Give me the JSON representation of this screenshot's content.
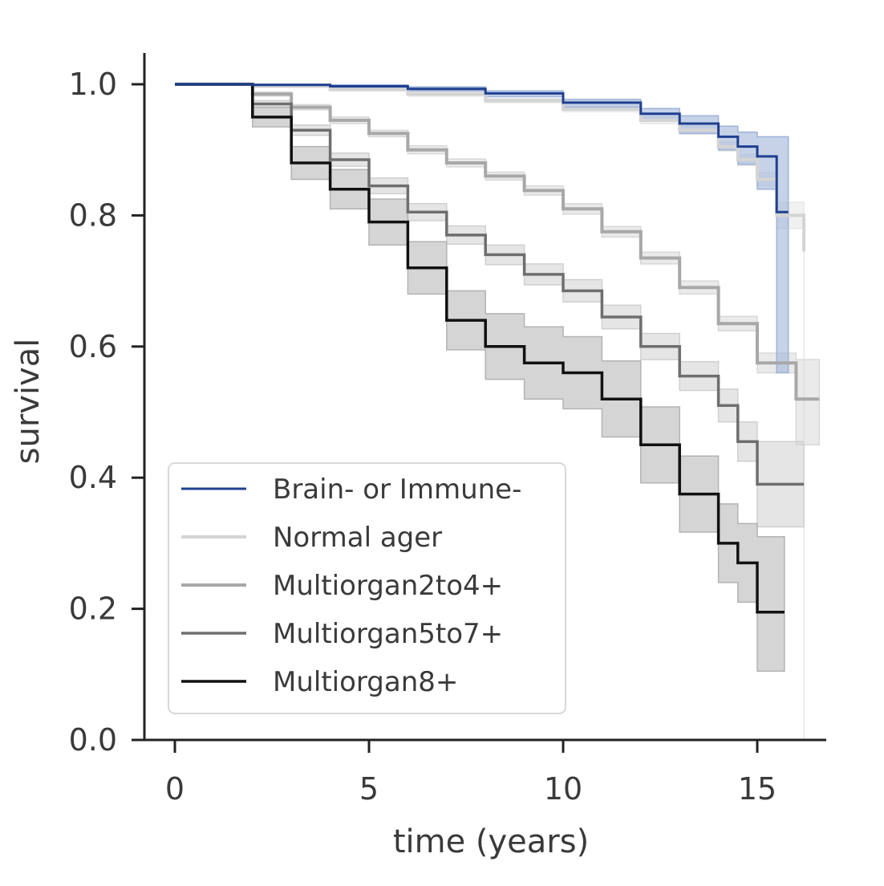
{
  "chart_data": {
    "type": "line",
    "subtype": "kaplan-meier step survival curves with confidence bands",
    "title": "",
    "xlabel": "time (years)",
    "ylabel": "survival",
    "xlim": [
      -1.5,
      16.9
    ],
    "ylim": [
      0,
      1.05
    ],
    "xticks": [
      0,
      5,
      10,
      15
    ],
    "yticks": [
      0.0,
      0.2,
      0.4,
      0.6,
      0.8,
      1.0
    ],
    "xtick_labels": [
      "0",
      "5",
      "10",
      "15"
    ],
    "ytick_labels": [
      "0.0",
      "0.2",
      "0.4",
      "0.6",
      "0.8",
      "1.0"
    ],
    "grid": false,
    "spines": "left and bottom only",
    "legend_position": "lower-left",
    "series": [
      {
        "name": "Brain- or Immune-",
        "color": "#1f3f8f",
        "band_color": "#9fb4d8",
        "line_width": 3,
        "points": [
          [
            0,
            1.0
          ],
          [
            1,
            1.0
          ],
          [
            2,
            0.999
          ],
          [
            4,
            0.997
          ],
          [
            6,
            0.993
          ],
          [
            8,
            0.986
          ],
          [
            10,
            0.972
          ],
          [
            12,
            0.955
          ],
          [
            13,
            0.94
          ],
          [
            14,
            0.92
          ],
          [
            14.5,
            0.905
          ],
          [
            15,
            0.89
          ],
          [
            15.5,
            0.805
          ],
          [
            15.8,
            0.805
          ]
        ],
        "upper": [
          [
            0,
            1.0
          ],
          [
            1,
            1.0
          ],
          [
            2,
            1.0
          ],
          [
            4,
            0.999
          ],
          [
            6,
            0.996
          ],
          [
            8,
            0.99
          ],
          [
            10,
            0.977
          ],
          [
            12,
            0.963
          ],
          [
            13,
            0.952
          ],
          [
            14,
            0.936
          ],
          [
            14.5,
            0.927
          ],
          [
            15,
            0.92
          ],
          [
            15.5,
            0.92
          ],
          [
            15.8,
            0.92
          ]
        ],
        "lower": [
          [
            0,
            1.0
          ],
          [
            1,
            1.0
          ],
          [
            2,
            0.998
          ],
          [
            4,
            0.995
          ],
          [
            6,
            0.99
          ],
          [
            8,
            0.981
          ],
          [
            10,
            0.965
          ],
          [
            12,
            0.945
          ],
          [
            13,
            0.925
          ],
          [
            14,
            0.9
          ],
          [
            14.5,
            0.878
          ],
          [
            15,
            0.84
          ],
          [
            15.5,
            0.56
          ],
          [
            15.8,
            0.56
          ]
        ]
      },
      {
        "name": "Normal ager",
        "color": "#d4d4d4",
        "band_color": "#e6e6e6",
        "line_width": 4,
        "points": [
          [
            0,
            1.0
          ],
          [
            1,
            1.0
          ],
          [
            2,
            0.997
          ],
          [
            4,
            0.992
          ],
          [
            6,
            0.985
          ],
          [
            8,
            0.975
          ],
          [
            10,
            0.962
          ],
          [
            12,
            0.945
          ],
          [
            13,
            0.93
          ],
          [
            14,
            0.905
          ],
          [
            14.5,
            0.885
          ],
          [
            15,
            0.855
          ],
          [
            15.5,
            0.8
          ],
          [
            16.2,
            0.745
          ]
        ],
        "upper": [
          [
            0,
            1.0
          ],
          [
            1,
            1.0
          ],
          [
            2,
            0.998
          ],
          [
            4,
            0.994
          ],
          [
            6,
            0.988
          ],
          [
            8,
            0.978
          ],
          [
            10,
            0.966
          ],
          [
            12,
            0.95
          ],
          [
            13,
            0.936
          ],
          [
            14,
            0.912
          ],
          [
            14.5,
            0.893
          ],
          [
            15,
            0.865
          ],
          [
            15.5,
            0.82
          ],
          [
            16.2,
            0.78
          ]
        ],
        "lower": [
          [
            0,
            1.0
          ],
          [
            1,
            1.0
          ],
          [
            2,
            0.996
          ],
          [
            4,
            0.99
          ],
          [
            6,
            0.982
          ],
          [
            8,
            0.972
          ],
          [
            10,
            0.958
          ],
          [
            12,
            0.94
          ],
          [
            13,
            0.924
          ],
          [
            14,
            0.898
          ],
          [
            14.5,
            0.876
          ],
          [
            15,
            0.845
          ],
          [
            15.5,
            0.78
          ],
          [
            16.2,
            0.0
          ]
        ]
      },
      {
        "name": "Multiorgan2to4+",
        "color": "#a8a8a8",
        "band_color": "#d8d8d8",
        "line_width": 4,
        "points": [
          [
            0,
            1.0
          ],
          [
            1,
            1.0
          ],
          [
            2,
            0.985
          ],
          [
            3,
            0.965
          ],
          [
            4,
            0.945
          ],
          [
            5,
            0.925
          ],
          [
            6,
            0.9
          ],
          [
            7,
            0.88
          ],
          [
            8,
            0.86
          ],
          [
            9,
            0.838
          ],
          [
            10,
            0.81
          ],
          [
            11,
            0.775
          ],
          [
            12,
            0.735
          ],
          [
            13,
            0.69
          ],
          [
            14,
            0.635
          ],
          [
            15,
            0.575
          ],
          [
            16,
            0.52
          ],
          [
            16.6,
            0.52
          ]
        ],
        "upper": [
          [
            0,
            1.0
          ],
          [
            1,
            1.0
          ],
          [
            2,
            0.988
          ],
          [
            3,
            0.969
          ],
          [
            4,
            0.95
          ],
          [
            5,
            0.93
          ],
          [
            6,
            0.906
          ],
          [
            7,
            0.886
          ],
          [
            8,
            0.866
          ],
          [
            9,
            0.845
          ],
          [
            10,
            0.818
          ],
          [
            11,
            0.783
          ],
          [
            12,
            0.744
          ],
          [
            13,
            0.7
          ],
          [
            14,
            0.646
          ],
          [
            15,
            0.59
          ],
          [
            16,
            0.58
          ],
          [
            16.6,
            0.58
          ]
        ],
        "lower": [
          [
            0,
            1.0
          ],
          [
            1,
            1.0
          ],
          [
            2,
            0.982
          ],
          [
            3,
            0.961
          ],
          [
            4,
            0.94
          ],
          [
            5,
            0.92
          ],
          [
            6,
            0.894
          ],
          [
            7,
            0.874
          ],
          [
            8,
            0.854
          ],
          [
            9,
            0.831
          ],
          [
            10,
            0.802
          ],
          [
            11,
            0.767
          ],
          [
            12,
            0.726
          ],
          [
            13,
            0.68
          ],
          [
            14,
            0.624
          ],
          [
            15,
            0.56
          ],
          [
            16,
            0.45
          ],
          [
            16.6,
            0.45
          ]
        ]
      },
      {
        "name": "Multiorgan5to7+",
        "color": "#6e6e6e",
        "band_color": "#d0d0d0",
        "line_width": 3.5,
        "points": [
          [
            0,
            1.0
          ],
          [
            1,
            1.0
          ],
          [
            2,
            0.97
          ],
          [
            3,
            0.93
          ],
          [
            4,
            0.885
          ],
          [
            5,
            0.845
          ],
          [
            6,
            0.805
          ],
          [
            7,
            0.77
          ],
          [
            8,
            0.74
          ],
          [
            9,
            0.71
          ],
          [
            10,
            0.685
          ],
          [
            11,
            0.645
          ],
          [
            12,
            0.6
          ],
          [
            13,
            0.555
          ],
          [
            14,
            0.51
          ],
          [
            14.5,
            0.455
          ],
          [
            15,
            0.39
          ],
          [
            16.2,
            0.39
          ]
        ],
        "upper": [
          [
            0,
            1.0
          ],
          [
            1,
            1.0
          ],
          [
            2,
            0.975
          ],
          [
            3,
            0.938
          ],
          [
            4,
            0.895
          ],
          [
            5,
            0.857
          ],
          [
            6,
            0.818
          ],
          [
            7,
            0.784
          ],
          [
            8,
            0.755
          ],
          [
            9,
            0.726
          ],
          [
            10,
            0.702
          ],
          [
            11,
            0.663
          ],
          [
            12,
            0.62
          ],
          [
            13,
            0.577
          ],
          [
            14,
            0.535
          ],
          [
            14.5,
            0.485
          ],
          [
            15,
            0.455
          ],
          [
            16.2,
            0.455
          ]
        ],
        "lower": [
          [
            0,
            1.0
          ],
          [
            1,
            1.0
          ],
          [
            2,
            0.965
          ],
          [
            3,
            0.922
          ],
          [
            4,
            0.875
          ],
          [
            5,
            0.833
          ],
          [
            6,
            0.792
          ],
          [
            7,
            0.756
          ],
          [
            8,
            0.725
          ],
          [
            9,
            0.694
          ],
          [
            10,
            0.668
          ],
          [
            11,
            0.627
          ],
          [
            12,
            0.58
          ],
          [
            13,
            0.533
          ],
          [
            14,
            0.485
          ],
          [
            14.5,
            0.425
          ],
          [
            15,
            0.325
          ],
          [
            16.2,
            0.325
          ]
        ]
      },
      {
        "name": "Multiorgan8+",
        "color": "#111111",
        "band_color": "#b3b3b3",
        "line_width": 3.5,
        "points": [
          [
            0,
            1.0
          ],
          [
            1,
            1.0
          ],
          [
            2,
            0.95
          ],
          [
            3,
            0.88
          ],
          [
            4,
            0.84
          ],
          [
            5,
            0.79
          ],
          [
            6,
            0.72
          ],
          [
            7,
            0.64
          ],
          [
            8,
            0.6
          ],
          [
            9,
            0.575
          ],
          [
            10,
            0.56
          ],
          [
            11,
            0.52
          ],
          [
            12,
            0.45
          ],
          [
            13,
            0.375
          ],
          [
            14,
            0.3
          ],
          [
            14.5,
            0.27
          ],
          [
            15,
            0.195
          ],
          [
            15.7,
            0.195
          ]
        ],
        "upper": [
          [
            0,
            1.0
          ],
          [
            1,
            1.0
          ],
          [
            2,
            0.965
          ],
          [
            3,
            0.905
          ],
          [
            4,
            0.87
          ],
          [
            5,
            0.825
          ],
          [
            6,
            0.76
          ],
          [
            7,
            0.685
          ],
          [
            8,
            0.65
          ],
          [
            9,
            0.63
          ],
          [
            10,
            0.615
          ],
          [
            11,
            0.578
          ],
          [
            12,
            0.508
          ],
          [
            13,
            0.433
          ],
          [
            14,
            0.36
          ],
          [
            14.5,
            0.33
          ],
          [
            15,
            0.31
          ],
          [
            15.7,
            0.31
          ]
        ],
        "lower": [
          [
            0,
            1.0
          ],
          [
            1,
            1.0
          ],
          [
            2,
            0.935
          ],
          [
            3,
            0.855
          ],
          [
            4,
            0.81
          ],
          [
            5,
            0.755
          ],
          [
            6,
            0.68
          ],
          [
            7,
            0.595
          ],
          [
            8,
            0.55
          ],
          [
            9,
            0.52
          ],
          [
            10,
            0.505
          ],
          [
            11,
            0.462
          ],
          [
            12,
            0.392
          ],
          [
            13,
            0.317
          ],
          [
            14,
            0.24
          ],
          [
            14.5,
            0.21
          ],
          [
            15,
            0.105
          ],
          [
            15.7,
            0.105
          ]
        ]
      }
    ]
  }
}
